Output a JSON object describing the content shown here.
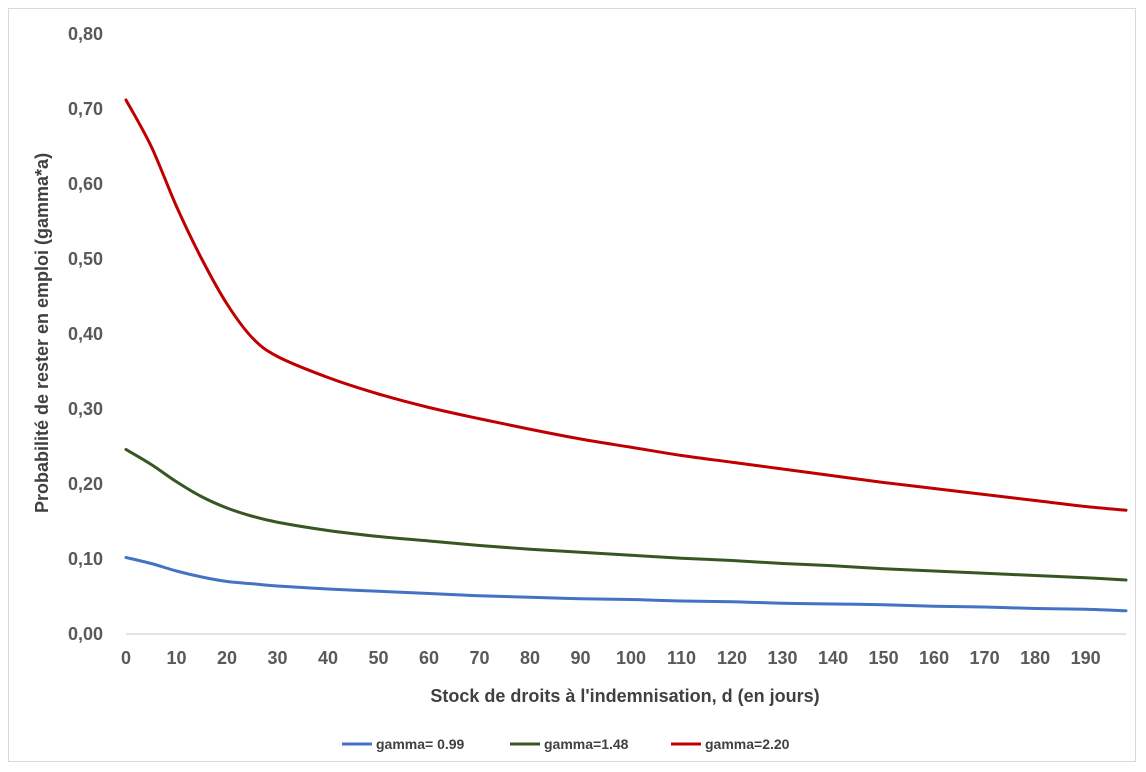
{
  "chart_data": {
    "type": "line",
    "title": "",
    "xlabel": "Stock de droits à l'indemnisation, d (en jours)",
    "ylabel": "Probabilité de rester en emploi (gamma*a)",
    "xlim": [
      0,
      198
    ],
    "ylim": [
      0,
      0.8
    ],
    "x_ticks": [
      0,
      10,
      20,
      30,
      40,
      50,
      60,
      70,
      80,
      90,
      100,
      110,
      120,
      130,
      140,
      150,
      160,
      170,
      180,
      190
    ],
    "x_tick_labels": [
      "0",
      "10",
      "20",
      "30",
      "40",
      "50",
      "60",
      "70",
      "80",
      "90",
      "100",
      "110",
      "120",
      "130",
      "140",
      "150",
      "160",
      "170",
      "180",
      "190"
    ],
    "y_ticks": [
      0,
      0.1,
      0.2,
      0.3,
      0.4,
      0.5,
      0.6,
      0.7,
      0.8
    ],
    "y_tick_labels": [
      "0,00",
      "0,10",
      "0,20",
      "0,30",
      "0,40",
      "0,50",
      "0,60",
      "0,70",
      "0,80"
    ],
    "grid": false,
    "legend_position": "bottom",
    "x": [
      0,
      5,
      10,
      15,
      20,
      25,
      30,
      40,
      50,
      60,
      70,
      80,
      90,
      100,
      110,
      120,
      130,
      140,
      150,
      160,
      170,
      180,
      190,
      198
    ],
    "series": [
      {
        "name": "gamma= 0.99",
        "color": "#4472c4",
        "values": [
          0.102,
          0.094,
          0.084,
          0.076,
          0.07,
          0.067,
          0.064,
          0.06,
          0.057,
          0.054,
          0.051,
          0.049,
          0.047,
          0.046,
          0.044,
          0.043,
          0.041,
          0.04,
          0.039,
          0.037,
          0.036,
          0.034,
          0.033,
          0.031
        ]
      },
      {
        "name": "gamma=1.48",
        "color": "#375623",
        "values": [
          0.246,
          0.226,
          0.203,
          0.183,
          0.168,
          0.157,
          0.149,
          0.138,
          0.13,
          0.124,
          0.118,
          0.113,
          0.109,
          0.105,
          0.101,
          0.098,
          0.094,
          0.091,
          0.087,
          0.084,
          0.081,
          0.078,
          0.075,
          0.072
        ]
      },
      {
        "name": "gamma=2.20",
        "color": "#c00000",
        "values": [
          0.712,
          0.65,
          0.57,
          0.5,
          0.44,
          0.395,
          0.37,
          0.342,
          0.32,
          0.302,
          0.287,
          0.273,
          0.26,
          0.249,
          0.238,
          0.229,
          0.22,
          0.211,
          0.202,
          0.194,
          0.186,
          0.178,
          0.17,
          0.165
        ]
      }
    ]
  }
}
